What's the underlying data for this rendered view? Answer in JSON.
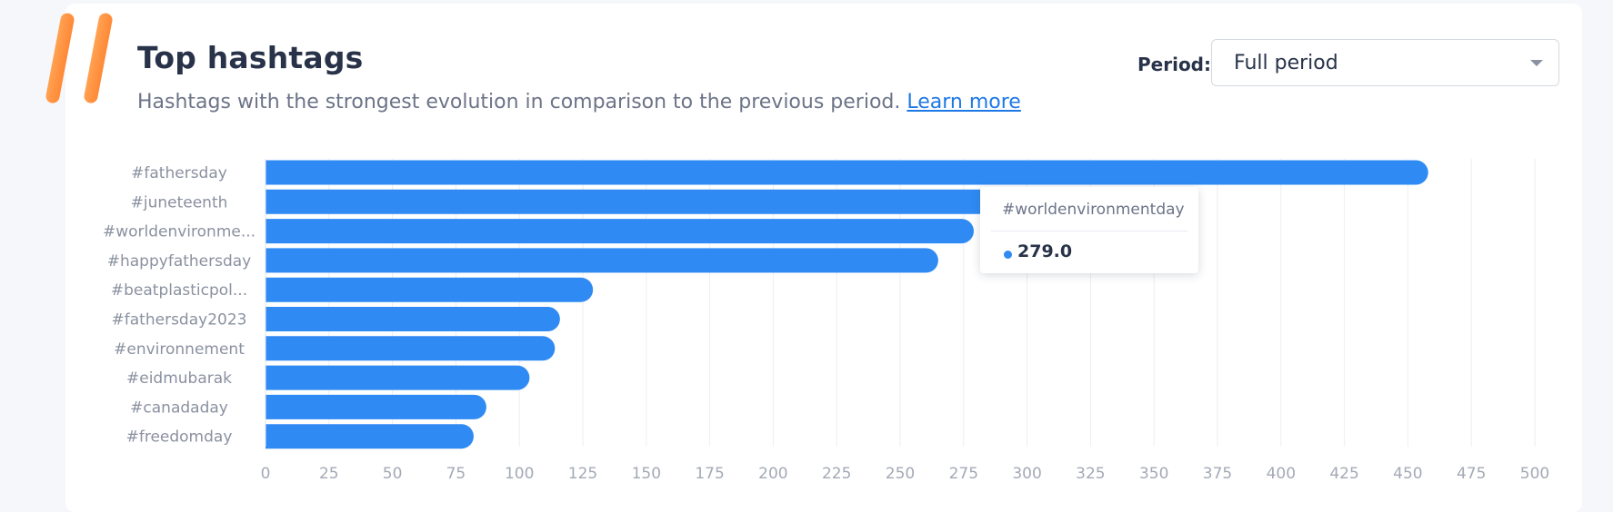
{
  "header": {
    "title": "Top hashtags",
    "subtitle": "Hashtags with the strongest evolution in comparison to the previous period.",
    "learn_more": "Learn more",
    "logo_icon": "hashtag-icon"
  },
  "period": {
    "label": "Period:",
    "value": "Full period"
  },
  "tooltip": {
    "name": "#worldenvironmentday",
    "value": "279.0"
  },
  "colors": {
    "bar": "#2f8af3",
    "link": "#1e78e6",
    "logo": "#ff8a34"
  },
  "chart_data": {
    "type": "bar",
    "orientation": "horizontal",
    "categories": [
      "#fathersday",
      "#juneteenth",
      "#worldenvironme...",
      "#happyfathersday",
      "#beatplasticpol...",
      "#fathersday2023",
      "#environnement",
      "#eidmubarak",
      "#canadaday",
      "#freedomday"
    ],
    "values": [
      458,
      290,
      279,
      265,
      129,
      116,
      114,
      104,
      87,
      82
    ],
    "xlim": [
      0,
      500
    ],
    "xticks": [
      0,
      25,
      50,
      75,
      100,
      125,
      150,
      175,
      200,
      225,
      250,
      275,
      300,
      325,
      350,
      375,
      400,
      425,
      450,
      475,
      500
    ],
    "grid": true,
    "legend": false
  }
}
